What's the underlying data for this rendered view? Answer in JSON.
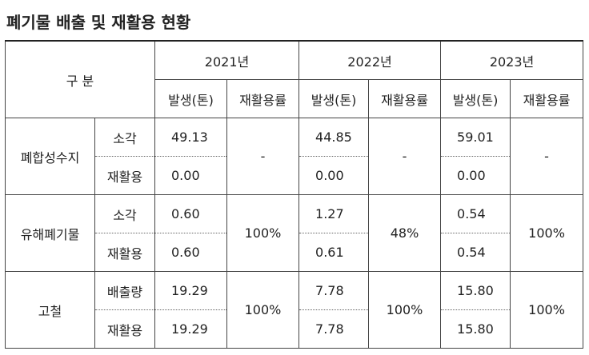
{
  "title": "폐기물 배출 및 재활용 현황",
  "table": {
    "header": {
      "label": "구 분",
      "years": [
        "2021년",
        "2022년",
        "2023년"
      ],
      "subheaders": [
        "발생(톤)",
        "재활용률"
      ]
    },
    "groups": [
      {
        "name": "폐합성수지",
        "items": [
          {
            "label": "소각",
            "values": [
              "49.13",
              "44.85",
              "59.01"
            ]
          },
          {
            "label": "재활용",
            "values": [
              "0.00",
              "0.00",
              "0.00"
            ]
          }
        ],
        "rates": [
          "-",
          "-",
          "-"
        ]
      },
      {
        "name": "유해폐기물",
        "items": [
          {
            "label": "소각",
            "values": [
              "0.60",
              "1.27",
              "0.54"
            ]
          },
          {
            "label": "재활용",
            "values": [
              "0.60",
              "0.61",
              "0.54"
            ]
          }
        ],
        "rates": [
          "100%",
          "48%",
          "100%"
        ]
      },
      {
        "name": "고철",
        "items": [
          {
            "label": "배출량",
            "values": [
              "19.29",
              "7.78",
              "15.80"
            ]
          },
          {
            "label": "재활용",
            "values": [
              "19.29",
              "7.78",
              "15.80"
            ]
          }
        ],
        "rates": [
          "100%",
          "100%",
          "100%"
        ]
      }
    ]
  }
}
